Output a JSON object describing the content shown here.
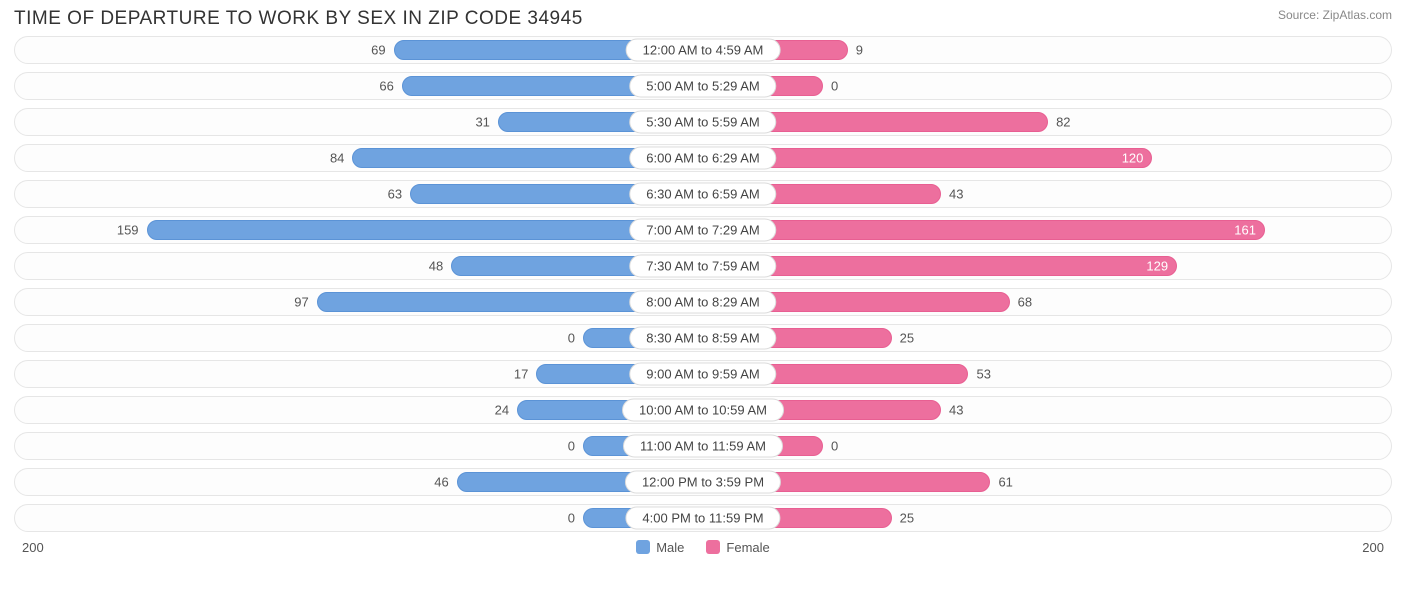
{
  "title": "TIME OF DEPARTURE TO WORK BY SEX IN ZIP CODE 34945",
  "source": "Source: ZipAtlas.com",
  "chart": {
    "type": "diverging-bar",
    "axis_max": 200,
    "axis_left_label": "200",
    "axis_right_label": "200",
    "center_label_min_half": 80,
    "bar_min_half": 40,
    "colors": {
      "male": "#6fa3e0",
      "male_edge": "#5b93d6",
      "female": "#ed6f9e",
      "female_edge": "#e85f92",
      "row_border": "#e6e6e6",
      "label_border": "#dcdcdc",
      "text": "#555555",
      "text_inside": "#ffffff",
      "background": "#ffffff"
    },
    "legend": {
      "male": "Male",
      "female": "Female"
    },
    "rows": [
      {
        "label": "12:00 AM to 4:59 AM",
        "male": 69,
        "female": 9
      },
      {
        "label": "5:00 AM to 5:29 AM",
        "male": 66,
        "female": 0
      },
      {
        "label": "5:30 AM to 5:59 AM",
        "male": 31,
        "female": 82
      },
      {
        "label": "6:00 AM to 6:29 AM",
        "male": 84,
        "female": 120,
        "female_inside": true
      },
      {
        "label": "6:30 AM to 6:59 AM",
        "male": 63,
        "female": 43
      },
      {
        "label": "7:00 AM to 7:29 AM",
        "male": 159,
        "female": 161,
        "female_inside": true
      },
      {
        "label": "7:30 AM to 7:59 AM",
        "male": 48,
        "female": 129,
        "female_inside": true
      },
      {
        "label": "8:00 AM to 8:29 AM",
        "male": 97,
        "female": 68
      },
      {
        "label": "8:30 AM to 8:59 AM",
        "male": 0,
        "female": 25
      },
      {
        "label": "9:00 AM to 9:59 AM",
        "male": 17,
        "female": 53
      },
      {
        "label": "10:00 AM to 10:59 AM",
        "male": 24,
        "female": 43
      },
      {
        "label": "11:00 AM to 11:59 AM",
        "male": 0,
        "female": 0
      },
      {
        "label": "12:00 PM to 3:59 PM",
        "male": 46,
        "female": 61
      },
      {
        "label": "4:00 PM to 11:59 PM",
        "male": 0,
        "female": 25
      }
    ]
  }
}
